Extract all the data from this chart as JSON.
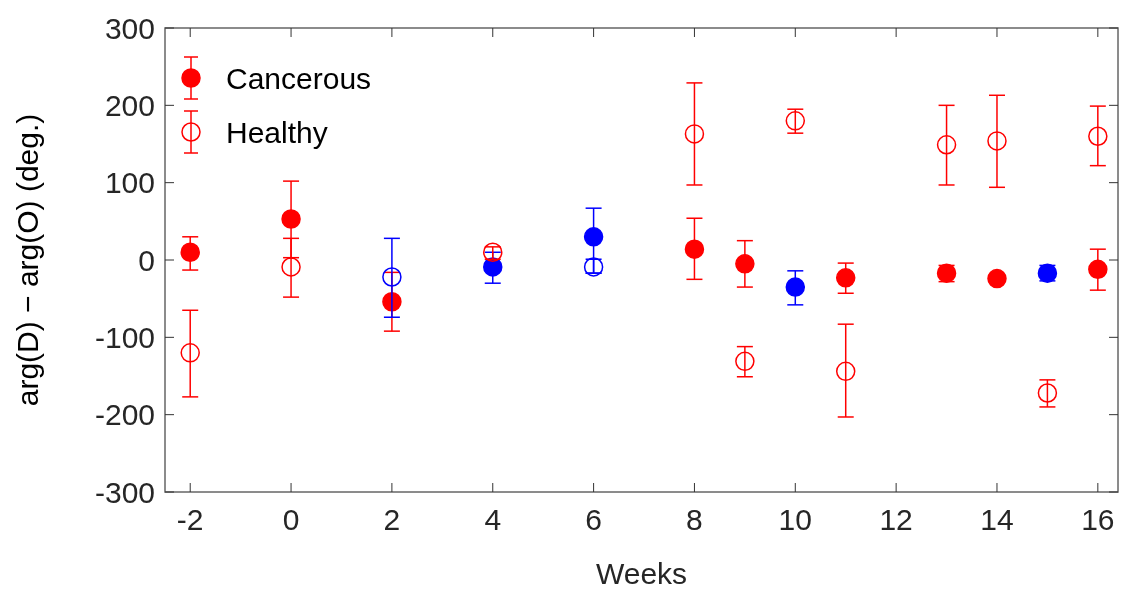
{
  "chart_data": {
    "type": "scatter",
    "xlabel": "Weeks",
    "ylabel": "arg(D) − arg(O) (deg.)",
    "x": [
      -2,
      0,
      2,
      4,
      6,
      8,
      9,
      10,
      11,
      13,
      14,
      15,
      16
    ],
    "series": [
      {
        "name": "Cancerous",
        "color": "#ff0000",
        "colors": [
          "#ff0000",
          "#ff0000",
          "#ff0000",
          "#0000ff",
          "#0000ff",
          "#ff0000",
          "#ff0000",
          "#0000ff",
          "#ff0000",
          "#ff0000",
          "#ff0000",
          "#0000ff",
          "#ff0000"
        ],
        "values": [
          10,
          53,
          -54,
          -9,
          30,
          14,
          -5,
          -35,
          -23,
          -17,
          -24,
          -17,
          -12
        ],
        "errors": [
          [
            -13,
            30
          ],
          [
            3,
            102
          ],
          [
            -92,
            -16
          ],
          [
            -30,
            10
          ],
          [
            -17,
            67
          ],
          [
            -25,
            54
          ],
          [
            -35,
            25
          ],
          [
            -58,
            -14
          ],
          [
            -43,
            -4
          ],
          [
            -28,
            -7
          ],
          null,
          [
            -27,
            -7
          ],
          [
            -39,
            14
          ]
        ]
      },
      {
        "name": "Healthy",
        "color": "#ff0000",
        "colors": [
          "#ff0000",
          "#ff0000",
          "#0000ff",
          "#ff0000",
          "#0000ff",
          "#ff0000",
          "#ff0000",
          "#ff0000",
          "#ff0000",
          "#ff0000",
          "#ff0000",
          "#ff0000",
          "#ff0000"
        ],
        "values": [
          -120,
          -9,
          -22,
          10,
          -9,
          163,
          -131,
          180,
          -144,
          149,
          154,
          -172,
          160
        ],
        "errors": [
          [
            -177,
            -65
          ],
          [
            -48,
            28
          ],
          [
            -74,
            28
          ],
          [
            1,
            17
          ],
          [
            -17,
            1
          ],
          [
            97,
            229
          ],
          [
            -151,
            -112
          ],
          [
            164,
            195
          ],
          [
            -203,
            -83
          ],
          [
            97,
            200
          ],
          [
            94,
            213
          ],
          [
            -190,
            -155
          ],
          [
            122,
            199
          ]
        ]
      }
    ],
    "xlim": [
      -2.5,
      16.4
    ],
    "ylim": [
      -300,
      300
    ],
    "xticks": [
      -2,
      0,
      2,
      4,
      6,
      8,
      10,
      12,
      14,
      16
    ],
    "yticks": [
      -300,
      -200,
      -100,
      0,
      100,
      200,
      300
    ],
    "marker": "circle",
    "legend": "top left",
    "grid": false
  }
}
